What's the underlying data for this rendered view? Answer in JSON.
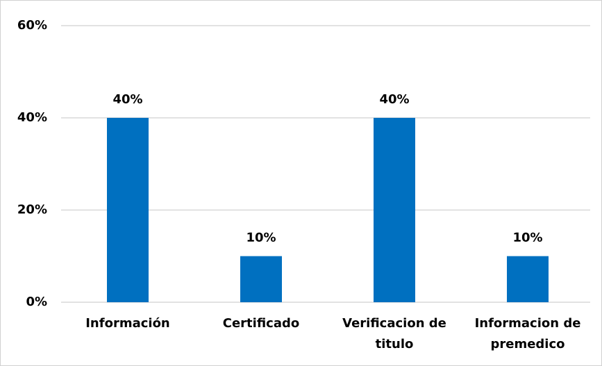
{
  "chart_data": {
    "type": "bar",
    "categories": [
      "Información",
      "Certificado",
      "Verificacion de titulo",
      "Informacion de premedico"
    ],
    "values": [
      40,
      10,
      40,
      10
    ],
    "value_labels": [
      "40%",
      "10%",
      "40%",
      "10%"
    ],
    "color": "#0070c0",
    "ylim": [
      0,
      60
    ],
    "yticks": [
      {
        "value": 0,
        "label": "0%"
      },
      {
        "value": 20,
        "label": "20%"
      },
      {
        "value": 40,
        "label": "40%"
      },
      {
        "value": 60,
        "label": "60%"
      }
    ],
    "grid": true
  }
}
